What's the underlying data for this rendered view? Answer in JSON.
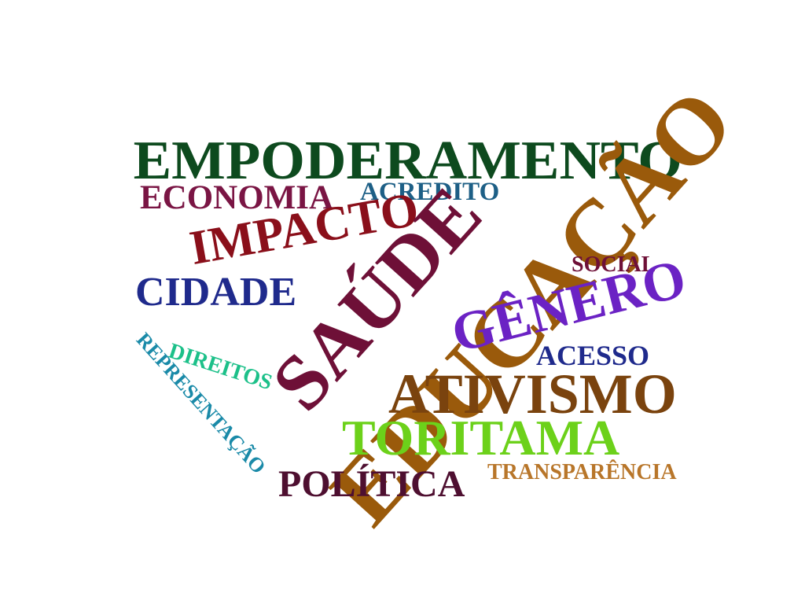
{
  "words": [
    {
      "key": "empoderamento",
      "text": "EMPODERAMENTO",
      "color": "#0d4a1e"
    },
    {
      "key": "economia",
      "text": "ECONOMIA",
      "color": "#7a1544"
    },
    {
      "key": "acredito",
      "text": "ACREDITO",
      "color": "#1d5f86"
    },
    {
      "key": "impacto",
      "text": "IMPACTO",
      "color": "#8a0f1a"
    },
    {
      "key": "cidade",
      "text": "CIDADE",
      "color": "#1f2a8c"
    },
    {
      "key": "saude",
      "text": "SAÚDE",
      "color": "#6e1037"
    },
    {
      "key": "educacao",
      "text": "EDUCAÇÃO",
      "color": "#9a5a0b"
    },
    {
      "key": "social",
      "text": "SOCIAL",
      "color": "#6e1037"
    },
    {
      "key": "genero",
      "text": "GÊNERO",
      "color": "#6b22c4"
    },
    {
      "key": "acesso",
      "text": "ACESSO",
      "color": "#1f2a8c"
    },
    {
      "key": "direitos",
      "text": "DIREITOS",
      "color": "#1cc089"
    },
    {
      "key": "representacao",
      "text": "REPRESENTAÇÃO",
      "color": "#1a8aa8"
    },
    {
      "key": "ativismo",
      "text": "ATIVISMO",
      "color": "#7a430e"
    },
    {
      "key": "toritama",
      "text": "TORITAMA",
      "color": "#6cd11a"
    },
    {
      "key": "politica",
      "text": "POLÍTICA",
      "color": "#4e0f30"
    },
    {
      "key": "transparencia",
      "text": "TRANSPARÊNCIA",
      "color": "#b8762a"
    }
  ]
}
